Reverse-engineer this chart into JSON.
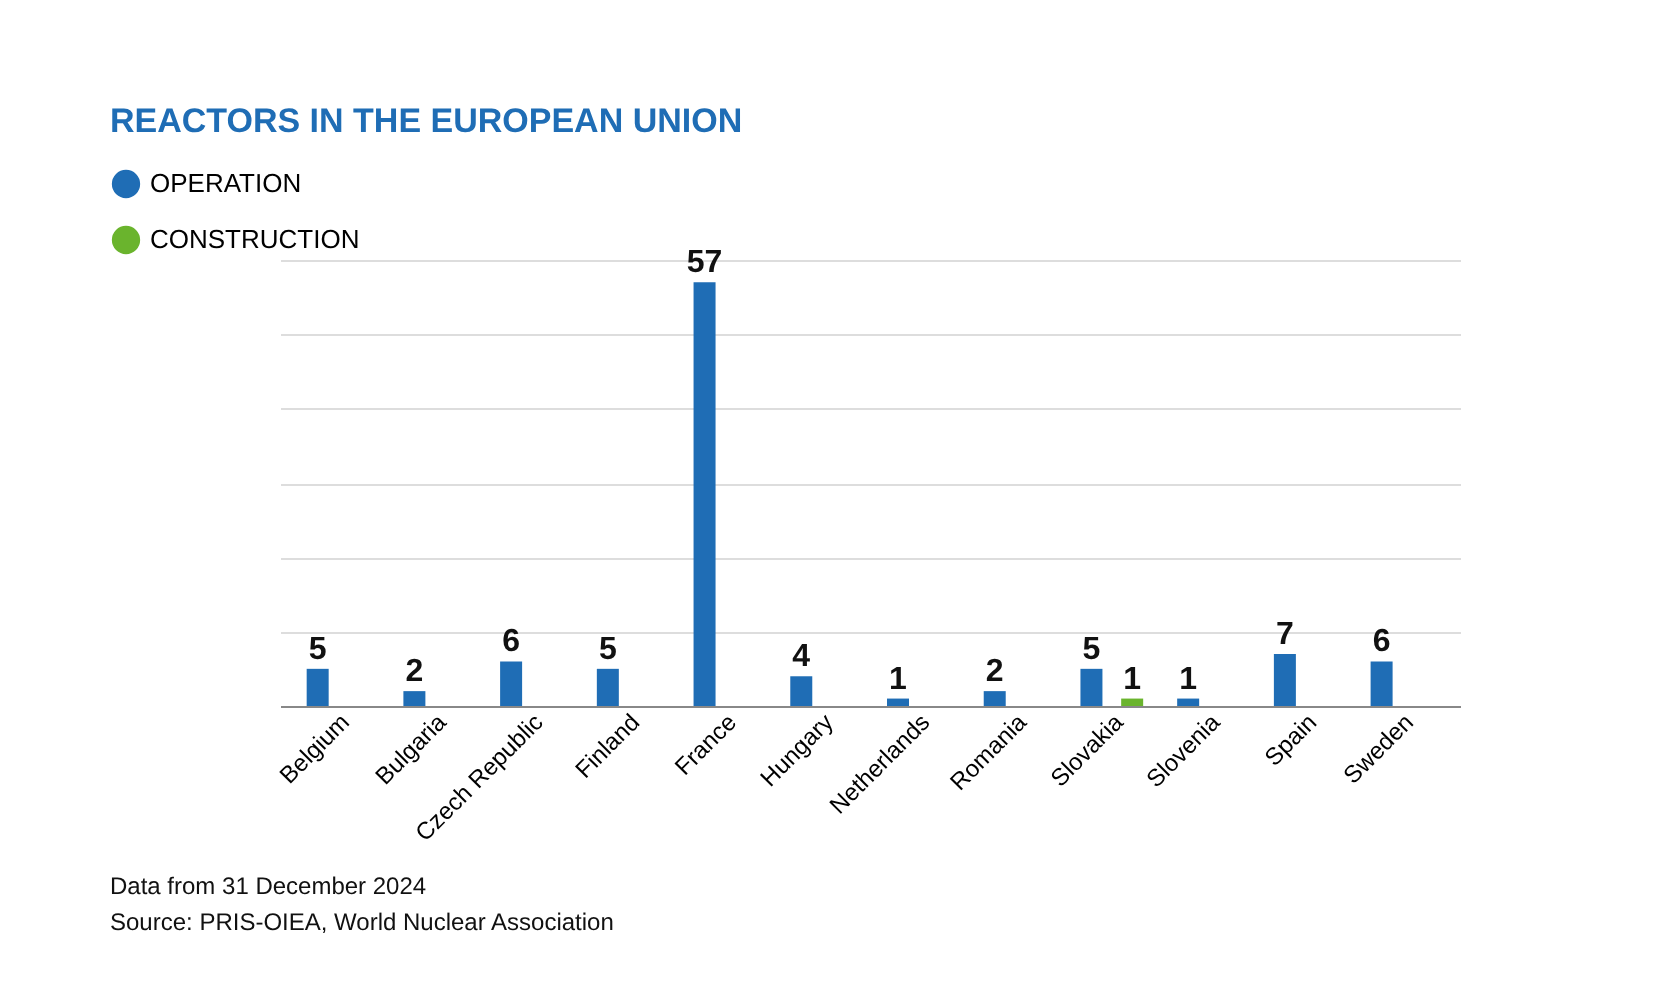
{
  "chart_data": {
    "type": "bar",
    "title": "REACTORS IN THE EUROPEAN UNION",
    "categories": [
      "Belgium",
      "Bulgaria",
      "Czech Republic",
      "Finland",
      "France",
      "Hungary",
      "Netherlands",
      "Romania",
      "Slovakia",
      "Slovenia",
      "Spain",
      "Sweden"
    ],
    "series": [
      {
        "name": "OPERATION",
        "color": "#1f6db5",
        "values": [
          5,
          2,
          6,
          5,
          57,
          4,
          1,
          2,
          5,
          1,
          7,
          6
        ]
      },
      {
        "name": "CONSTRUCTION",
        "color": "#6ab42d",
        "values": [
          null,
          null,
          null,
          null,
          null,
          null,
          null,
          null,
          1,
          null,
          null,
          null
        ]
      }
    ],
    "ylim": [
      0,
      60
    ],
    "tick_labels": "x",
    "grid": "y",
    "legend": "top left",
    "data_labels": true,
    "annotations": [
      "Data from 31 December 2024",
      "Source: PRIS-OIEA, World Nuclear Association"
    ]
  }
}
